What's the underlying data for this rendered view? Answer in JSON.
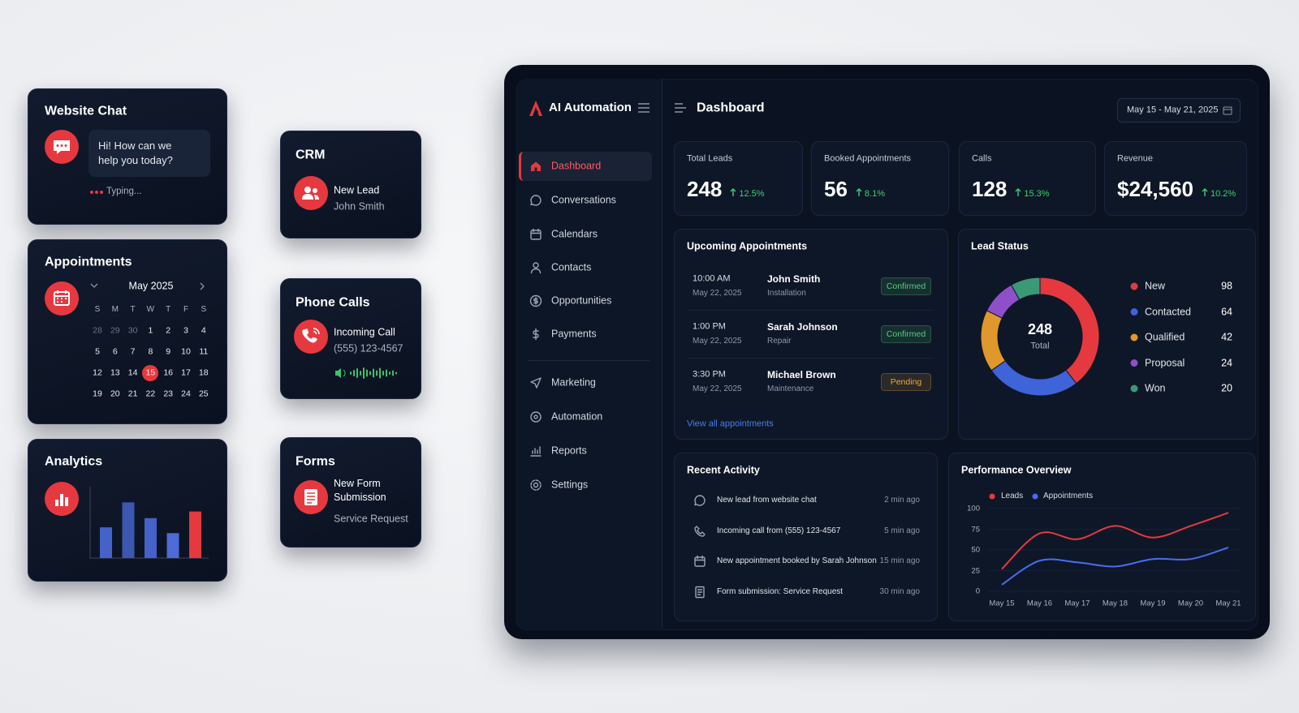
{
  "website_chat": {
    "title": "Website Chat",
    "message": "Hi! How can we help you today?",
    "status": "Typing..."
  },
  "appointments": {
    "title": "Appointments",
    "month": "May 2025",
    "weekdays": [
      "S",
      "M",
      "T",
      "W",
      "T",
      "F",
      "S"
    ],
    "weeks": [
      [
        28,
        29,
        30,
        1,
        2,
        3,
        4
      ],
      [
        5,
        6,
        7,
        8,
        9,
        10,
        11
      ],
      [
        12,
        13,
        14,
        15,
        16,
        17,
        18
      ],
      [
        19,
        20,
        21,
        22,
        23,
        24,
        25
      ]
    ]
  },
  "crm": {
    "title": "CRM",
    "event": "New Lead",
    "detail": "John Smith"
  },
  "phone_calls": {
    "title": "Phone Calls",
    "event": "Incoming Call",
    "detail": "(555) 123-4567"
  },
  "forms": {
    "title": "Forms",
    "event": "New Form Submission",
    "detail": "Service Request"
  },
  "sidebar": {
    "brand": "AI Automation",
    "nav": [
      "Dashboard",
      "Conversations",
      "Calendars",
      "Contacts",
      "Opportunities",
      "Payments",
      "Marketing",
      "Automation",
      "Reports",
      "Settings"
    ]
  },
  "header": {
    "title": "Dashboard",
    "date_range": "May 15 - May 21, 2025"
  },
  "stats": [
    {
      "label": "Total Leads",
      "value": 248,
      "change": "12.5%"
    },
    {
      "label": "Booked Appointments",
      "value": 56,
      "change": "8.1%"
    },
    {
      "label": "Calls",
      "value": 128,
      "change": "15.3%"
    },
    {
      "label": "Revenue",
      "value": "$24,560",
      "change": "10.2%"
    }
  ],
  "upcoming_appointments": {
    "title": "Upcoming Appointments",
    "items": [
      {
        "time": "10:00 AM",
        "date": "May 22, 2025",
        "name": "John Smith",
        "service": "Installation",
        "status": "Confirmed",
        "status_color": "#4fd07a"
      },
      {
        "time": "1:00 PM",
        "date": "May 22, 2025",
        "name": "Sarah Johnson",
        "service": "Repair",
        "status": "Confirmed",
        "status_color": "#4fd07a"
      },
      {
        "time": "3:30 PM",
        "date": "May 22, 2025",
        "name": "Michael Brown",
        "service": "Maintenance",
        "status": "Pending",
        "status_color": "#f0a63a"
      }
    ],
    "link": "View all appointments"
  },
  "recent_activity": {
    "title": "Recent Activity",
    "items": [
      {
        "text": "New lead from website chat",
        "time": "2 min ago"
      },
      {
        "text": "Incoming call from (555) 123-4567",
        "time": "5 min ago"
      },
      {
        "text": "New appointment booked by Sarah Johnson",
        "time": "15 min ago"
      },
      {
        "text": "Form submission: Service Request",
        "time": "30 min ago"
      }
    ]
  },
  "chart_data": [
    {
      "type": "bar",
      "title": "Analytics",
      "values": [
        37,
        67,
        48,
        30,
        56
      ],
      "colors": [
        "#4462c8",
        "#3b57b0",
        "#4462c8",
        "#4d6ad6",
        "#e5393f"
      ],
      "ylim": [
        0,
        80
      ]
    },
    {
      "type": "donut",
      "title": "Lead Status",
      "categories": [
        "New",
        "Contacted",
        "Qualified",
        "Proposal",
        "Won"
      ],
      "values": [
        98,
        64,
        42,
        24,
        20
      ],
      "colors": [
        "#e5393f",
        "#3f63d8",
        "#e0972b",
        "#8f4fc9",
        "#3a9a78"
      ],
      "total": 248,
      "total_label": "Total"
    },
    {
      "type": "line",
      "title": "Performance Overview",
      "categories": [
        "May 15",
        "May 16",
        "May 17",
        "May 18",
        "May 19",
        "May 20",
        "May 21"
      ],
      "series": [
        {
          "name": "Leads",
          "color": "#e5393f",
          "values": [
            27,
            70,
            63,
            79,
            65,
            79,
            95
          ]
        },
        {
          "name": "Appointments",
          "color": "#4a6cf0",
          "values": [
            8,
            37,
            35,
            30,
            39,
            39,
            53
          ]
        }
      ],
      "ylim": [
        0,
        100
      ],
      "yticks": [
        0,
        25,
        50,
        75,
        100
      ],
      "grid": true
    }
  ]
}
